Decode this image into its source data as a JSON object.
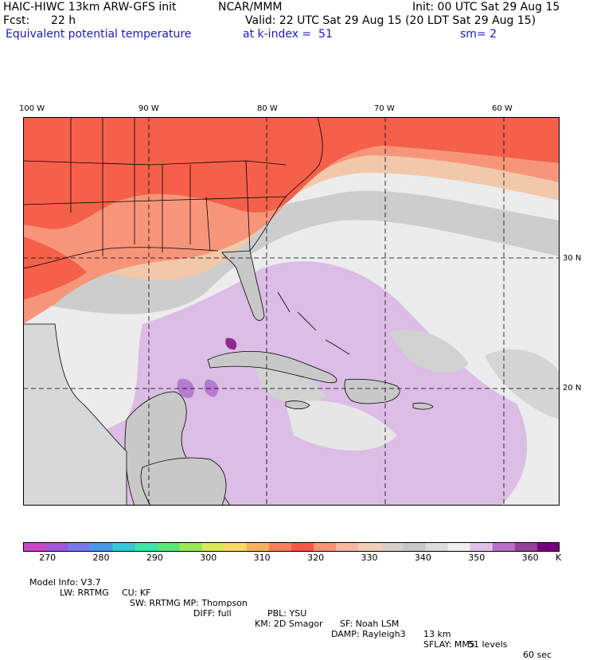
{
  "header": {
    "model": "HAIC-HIWC 13km ARW-GFS init",
    "org": "NCAR/MMM",
    "init": "Init: 00 UTC Sat 29 Aug 15",
    "fcst_label": "Fcst:",
    "fcst_value": "22 h",
    "valid": "Valid: 22 UTC Sat 29 Aug 15 (20 LDT Sat 29 Aug 15)",
    "field": "Equivalent potential temperature",
    "level": "at k-index =  51",
    "smooth": "sm= 2"
  },
  "map": {
    "lon_labels": [
      "100 W",
      "90 W",
      "80 W",
      "70 W",
      "60 W"
    ],
    "lat_labels": [
      "30 N",
      "20 N"
    ],
    "colors": {
      "hot_red": "#f4604a",
      "salmon": "#f89478",
      "peach": "#f3c9aa",
      "light_gray": "#e8e8e8",
      "mid_gray": "#cfcfcf",
      "lavender": "#dcbbe6",
      "purple": "#b77fd2",
      "dark_purple": "#8e2a8e",
      "land_gray": "#c6c6c6"
    }
  },
  "colorbar": {
    "colors": [
      "#c848c8",
      "#a058d8",
      "#7878e8",
      "#4898e8",
      "#38c8d8",
      "#38e8a8",
      "#58e878",
      "#98e858",
      "#d8e858",
      "#f8d868",
      "#f8b060",
      "#f88058",
      "#f85848",
      "#f89478",
      "#f8b8a0",
      "#f0d0b8",
      "#d8d0c8",
      "#c8c8c8",
      "#dcdcdc",
      "#f0f0f0",
      "#e0c0e8",
      "#b870c8",
      "#984098",
      "#780078"
    ],
    "tick_labels": [
      "270",
      "280",
      "290",
      "300",
      "310",
      "320",
      "330",
      "340",
      "350",
      "360"
    ],
    "unit": "K"
  },
  "footer": {
    "line1": [
      "Model Info: V3.7",
      "CU: KF",
      "MP: Thompson",
      "PBL: YSU",
      "SF: Noah LSM",
      "13 km",
      "51 levels",
      "60 sec"
    ],
    "line2": [
      "LW: RRTMG",
      "SW: RRTMG",
      "DIFF: full",
      "KM: 2D Smagor",
      "DAMP: Rayleigh3",
      "SFLAY: MM5"
    ]
  }
}
